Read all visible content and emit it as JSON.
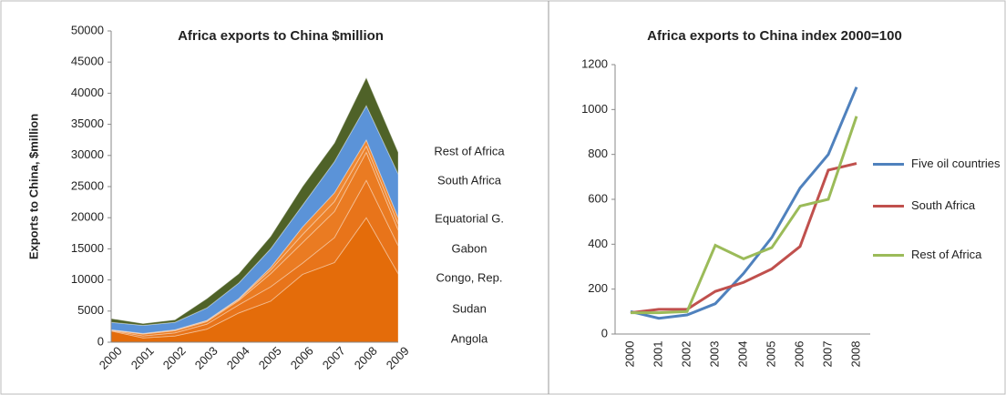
{
  "chart_data": [
    {
      "type": "area",
      "stacked": true,
      "title": "Africa exports to China $million",
      "y_label": "Exports to China, $million",
      "categories": [
        "2000",
        "2001",
        "2002",
        "2003",
        "2004",
        "2005",
        "2006",
        "2007",
        "2008",
        "2009"
      ],
      "ylim": [
        0,
        50000
      ],
      "yticks": [
        0,
        5000,
        10000,
        15000,
        20000,
        25000,
        30000,
        35000,
        40000,
        45000,
        50000
      ],
      "series": [
        {
          "name": "Angola",
          "color": "#e46c0a",
          "values": [
            1800,
            700,
            1000,
            2100,
            4700,
            6600,
            10900,
            12800,
            20000,
            11000
          ]
        },
        {
          "name": "Sudan",
          "color": "#e8741a",
          "values": [
            100,
            300,
            500,
            800,
            1300,
            2300,
            1800,
            4000,
            6000,
            4500
          ]
        },
        {
          "name": "Congo, Rep.",
          "color": "#ea7b22",
          "values": [
            50,
            300,
            350,
            400,
            700,
            2100,
            3300,
            4200,
            4500,
            2500
          ]
        },
        {
          "name": "Gabon",
          "color": "#ec822b",
          "values": [
            50,
            100,
            100,
            150,
            200,
            600,
            1300,
            1600,
            1000,
            1000
          ]
        },
        {
          "name": "Equatorial G.",
          "color": "#ee8834",
          "values": [
            0,
            0,
            50,
            50,
            100,
            400,
            1200,
            1400,
            1000,
            1000
          ]
        },
        {
          "name": "South Africa",
          "color": "#5b93d8",
          "values": [
            1200,
            1300,
            1200,
            2000,
            2500,
            3000,
            3500,
            5000,
            5500,
            7000
          ]
        },
        {
          "name": "Rest of Africa",
          "color": "#4f6228",
          "values": [
            600,
            300,
            400,
            1500,
            1500,
            2000,
            3000,
            3000,
            4500,
            3500
          ]
        }
      ]
    },
    {
      "type": "line",
      "title": "Africa exports to China index 2000=100",
      "categories": [
        "2000",
        "2001",
        "2002",
        "2003",
        "2004",
        "2005",
        "2006",
        "2007",
        "2008"
      ],
      "ylim": [
        0,
        1200
      ],
      "yticks": [
        0,
        200,
        400,
        600,
        800,
        1000,
        1200
      ],
      "series": [
        {
          "name": "Five oil countries",
          "color": "#4f81bd",
          "values": [
            100,
            70,
            85,
            135,
            270,
            430,
            650,
            800,
            1100
          ]
        },
        {
          "name": "South Africa",
          "color": "#c0504d",
          "values": [
            95,
            110,
            110,
            190,
            230,
            290,
            390,
            730,
            760
          ]
        },
        {
          "name": "Rest of Africa",
          "color": "#9bbb59",
          "values": [
            95,
            95,
            100,
            395,
            335,
            385,
            570,
            600,
            970
          ]
        }
      ]
    }
  ]
}
